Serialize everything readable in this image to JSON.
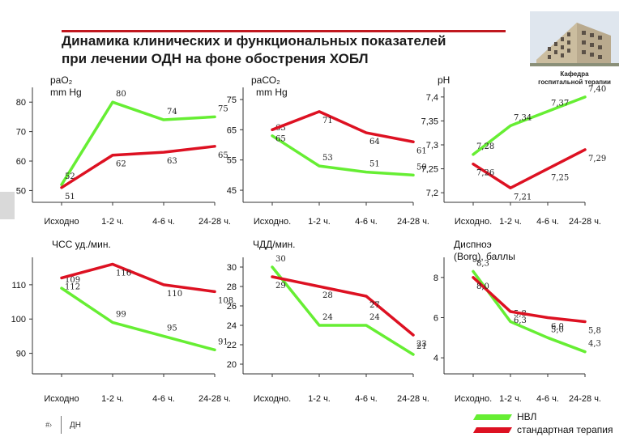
{
  "title": [
    "Динамика клинических и функциональных показателей",
    "при лечении ОДН на фоне обострения ХОБЛ"
  ],
  "logo": {
    "caption": [
      "Кафедра",
      "госпитальной терапии"
    ]
  },
  "footer": {
    "number": "#›",
    "text": "ДН"
  },
  "legend": [
    {
      "name": "НВЛ",
      "color": "#66ee33"
    },
    {
      "name": "стандартная терапия",
      "color": "#dd1122"
    }
  ],
  "colors": {
    "green": "#66ee33",
    "red": "#dd1122",
    "text": "#111111"
  },
  "chart_data": [
    {
      "type": "line",
      "title": "раО₂",
      "unit": "mm Hg",
      "categories": [
        "Исходно",
        "1-2 ч.",
        "4-6 ч.",
        "24-28 ч."
      ],
      "series": [
        {
          "name": "НВЛ",
          "color": "#66ee33",
          "values": [
            52,
            80,
            74,
            75
          ]
        },
        {
          "name": "стандартная терапия",
          "color": "#dd1122",
          "values": [
            51,
            62,
            63,
            65
          ]
        }
      ],
      "y_ticks": [
        "50",
        "60",
        "70",
        "80"
      ],
      "ylim": [
        46,
        85
      ]
    },
    {
      "type": "line",
      "title": "раСО₂",
      "unit": "mm Hg",
      "categories": [
        "Исходно.",
        "1-2 ч.",
        "4-6 ч.",
        "24-28 ч."
      ],
      "series": [
        {
          "name": "НВЛ",
          "color": "#66ee33",
          "values": [
            63,
            53,
            51,
            50
          ]
        },
        {
          "name": "стандартная терапия",
          "color": "#dd1122",
          "values": [
            65,
            71,
            64,
            61
          ]
        }
      ],
      "y_ticks": [
        "45",
        "55",
        "65",
        "75"
      ],
      "ylim": [
        41,
        79
      ]
    },
    {
      "type": "line",
      "title": "pH",
      "unit": "",
      "categories": [
        "Исходно.",
        "1-2 ч.",
        "4-6 ч.",
        "24-28 ч."
      ],
      "series": [
        {
          "name": "НВЛ",
          "color": "#66ee33",
          "values": [
            7.28,
            7.34,
            7.37,
            7.4
          ]
        },
        {
          "name": "стандартная терапия",
          "color": "#dd1122",
          "values": [
            7.26,
            7.21,
            7.25,
            7.29
          ]
        }
      ],
      "value_labels": [
        [
          "7,28",
          "7,34",
          "7,37",
          "7,40"
        ],
        [
          "7,26",
          "7,21",
          "7,25",
          "7,29"
        ]
      ],
      "y_ticks": [
        "7,2",
        "7,25",
        "7,3",
        "7,35",
        "7,4"
      ],
      "ylim": [
        7.18,
        7.42
      ]
    },
    {
      "type": "line",
      "title": "ЧСС уд./мин.",
      "unit": "",
      "categories": [
        "Исходно",
        "1-2 ч.",
        "4-6 ч.",
        "24-28 ч."
      ],
      "series": [
        {
          "name": "НВЛ",
          "color": "#66ee33",
          "values": [
            109,
            99,
            95,
            91
          ]
        },
        {
          "name": "стандартная терапия",
          "color": "#dd1122",
          "values": [
            112,
            116,
            110,
            108
          ]
        }
      ],
      "y_ticks": [
        "90",
        "100",
        "110"
      ],
      "ylim": [
        84,
        118
      ]
    },
    {
      "type": "line",
      "title": "ЧДД/мин.",
      "unit": "",
      "categories": [
        "Исходно.",
        "1-2 ч.",
        "4-6 ч.",
        "24-28 ч."
      ],
      "series": [
        {
          "name": "НВЛ",
          "color": "#66ee33",
          "values": [
            30,
            24,
            24,
            21
          ]
        },
        {
          "name": "стандартная терапия",
          "color": "#dd1122",
          "values": [
            29,
            28,
            27,
            23
          ]
        }
      ],
      "y_ticks": [
        "20",
        "22",
        "24",
        "26",
        "28",
        "30"
      ],
      "ylim": [
        19,
        31
      ]
    },
    {
      "type": "line",
      "title": "Диспноэ (Borg), баллы",
      "title_lines": [
        "Диспноэ",
        "(Borg), баллы"
      ],
      "unit": "",
      "categories": [
        "Исходно.",
        "1-2 ч.",
        "4-6 ч.",
        "24-28 ч."
      ],
      "series": [
        {
          "name": "НВЛ",
          "color": "#66ee33",
          "values": [
            8.3,
            5.8,
            5.0,
            4.3
          ]
        },
        {
          "name": "стандартная терапия",
          "color": "#dd1122",
          "values": [
            8.0,
            6.3,
            6.0,
            5.8
          ]
        }
      ],
      "value_labels": [
        [
          "8,3",
          "5,8",
          "5,0",
          "4,3"
        ],
        [
          "8,0",
          "6,3",
          "6,0",
          "5,8"
        ]
      ],
      "y_ticks": [
        "4",
        "6",
        "8"
      ],
      "ylim": [
        3.2,
        9
      ]
    }
  ]
}
